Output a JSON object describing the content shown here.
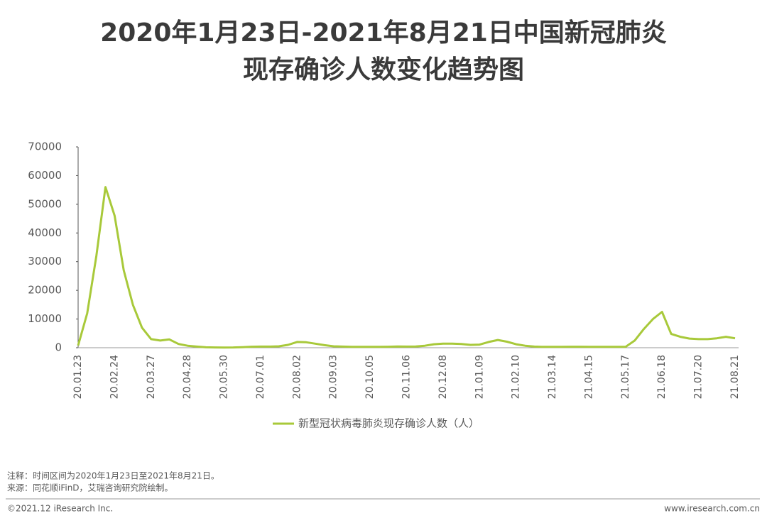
{
  "chart_data": {
    "type": "line",
    "title": "2020年1月23日-2021年8月21日中国新冠肺炎",
    "subtitle": "现存确诊人数变化趋势图",
    "categories": [
      "20.01.23",
      null,
      null,
      null,
      "20.02.24",
      null,
      null,
      null,
      "20.03.27",
      null,
      null,
      null,
      "20.04.28",
      null,
      null,
      null,
      "20.05.30",
      null,
      null,
      null,
      "20.07.01",
      null,
      null,
      null,
      "20.08.02",
      null,
      null,
      null,
      "20.09.03",
      null,
      null,
      null,
      "20.10.05",
      null,
      null,
      null,
      "20.11.06",
      null,
      null,
      null,
      "20.12.08",
      null,
      null,
      null,
      "21.01.09",
      null,
      null,
      null,
      "21.02.10",
      null,
      null,
      null,
      "21.03.14",
      null,
      null,
      null,
      "21.04.15",
      null,
      null,
      null,
      "21.05.17",
      null,
      null,
      null,
      "21.06.18",
      null,
      null,
      null,
      "21.07.20",
      null,
      null,
      null,
      "21.08.21"
    ],
    "series": [
      {
        "name": "新型冠状病毒肺炎现存确诊人数（人）",
        "color": "#a8c93a",
        "values": [
          800,
          12000,
          32000,
          56000,
          46000,
          27000,
          15000,
          7000,
          3000,
          2500,
          2900,
          1300,
          700,
          400,
          150,
          100,
          80,
          90,
          200,
          350,
          400,
          400,
          500,
          1000,
          2000,
          1900,
          1400,
          900,
          500,
          400,
          300,
          300,
          300,
          300,
          350,
          450,
          400,
          450,
          700,
          1200,
          1400,
          1400,
          1300,
          1000,
          1100,
          2000,
          2700,
          2100,
          1200,
          700,
          400,
          300,
          300,
          300,
          350,
          350,
          300,
          300,
          300,
          300,
          300,
          2500,
          6500,
          10000,
          12500,
          4800,
          3800,
          3200,
          3000,
          3000,
          3300,
          3800,
          3300
        ]
      }
    ],
    "ylim": [
      0,
      70000
    ],
    "yticks": [
      0,
      10000,
      20000,
      30000,
      40000,
      50000,
      60000,
      70000
    ],
    "grid": false,
    "notes": [
      "注释：时间区间为2020年1月23日至2021年8月21日。",
      "来源：同花顺iFinD，艾瑞咨询研究院绘制。"
    ],
    "footer_left": "©2021.12 iResearch Inc.",
    "footer_right": "www.iresearch.com.cn"
  }
}
